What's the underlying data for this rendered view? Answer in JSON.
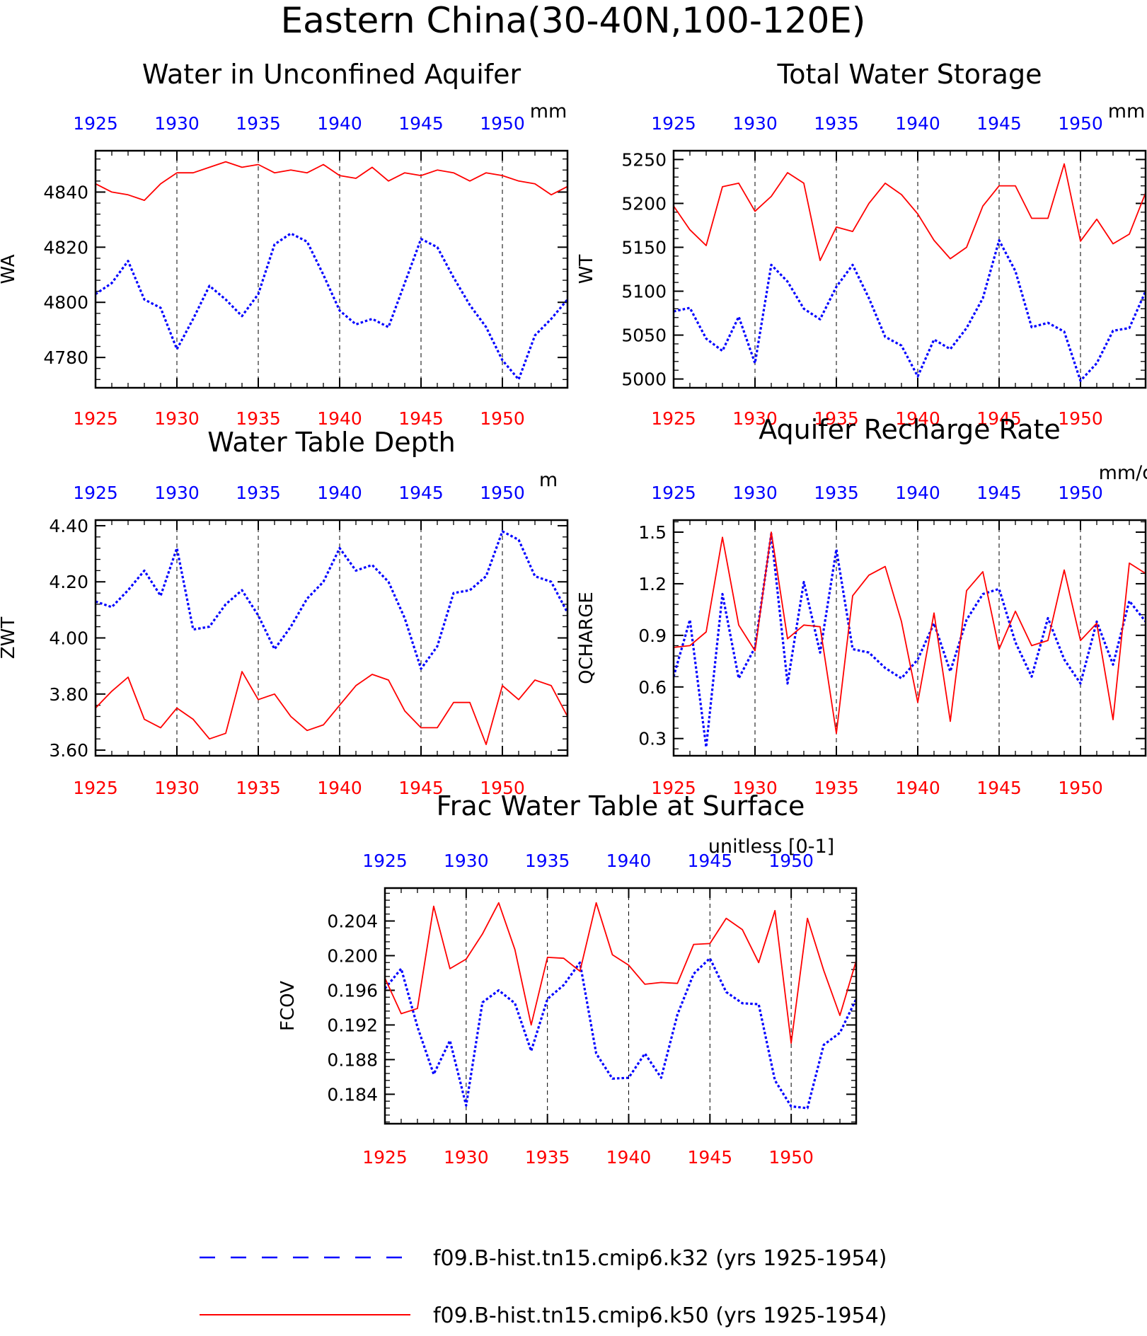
{
  "title": "Eastern China(30-40N,100-120E)",
  "legend": {
    "placement": "bottom",
    "entries": [
      {
        "label": "f09.B-hist.tn15.cmip6.k32 (yrs 1925-1954)",
        "color": "#0000ff",
        "style": "dashed"
      },
      {
        "label": "f09.B-hist.tn15.cmip6.k50 (yrs 1925-1954)",
        "color": "#ff0000",
        "style": "solid"
      }
    ]
  },
  "colors": {
    "k32": "#0000ff",
    "k50": "#ff0000",
    "axis": "#000000"
  },
  "chart_data": [
    {
      "type": "line",
      "title": "Water in Unconfined Aquifer",
      "units": "mm",
      "ylabel": "WA",
      "xlim": [
        1925,
        1954
      ],
      "ylim": [
        4769,
        4855
      ],
      "yticks": [
        4780,
        4800,
        4820,
        4840
      ],
      "ytick_labels": [
        "4780",
        "4800",
        "4820",
        "4840"
      ],
      "xticks": [
        1925,
        1930,
        1935,
        1940,
        1945,
        1950
      ],
      "grid": "dashed vertical lines at 1930, 1935, 1940, 1945, 1950",
      "x": [
        1925,
        1926,
        1927,
        1928,
        1929,
        1930,
        1931,
        1932,
        1933,
        1934,
        1935,
        1936,
        1937,
        1938,
        1939,
        1940,
        1941,
        1942,
        1943,
        1944,
        1945,
        1946,
        1947,
        1948,
        1949,
        1950,
        1951,
        1952,
        1953,
        1954
      ],
      "series": [
        {
          "name": "f09.B-hist.tn15.cmip6.k32 (yrs 1925-1954)",
          "color": "#0000ff",
          "style": "dashed",
          "values": [
            4803,
            4807,
            4815,
            4801,
            4798,
            4783,
            4794,
            4806,
            4801,
            4795,
            4803,
            4821,
            4825,
            4822,
            4810,
            4797,
            4792,
            4794,
            4791,
            4807,
            4823,
            4820,
            4809,
            4799,
            4791,
            4779,
            4772,
            4788,
            4794,
            4801
          ]
        },
        {
          "name": "f09.B-hist.tn15.cmip6.k50 (yrs 1925-1954)",
          "color": "#ff0000",
          "style": "solid",
          "values": [
            4843,
            4840,
            4839,
            4837,
            4843,
            4847,
            4847,
            4849,
            4851,
            4849,
            4850,
            4847,
            4848,
            4847,
            4850,
            4846,
            4845,
            4849,
            4844,
            4847,
            4846,
            4848,
            4847,
            4844,
            4847,
            4846,
            4844,
            4843,
            4839,
            4842
          ]
        }
      ]
    },
    {
      "type": "line",
      "title": "Total Water Storage",
      "units": "mm",
      "ylabel": "WT",
      "xlim": [
        1925,
        1954
      ],
      "ylim": [
        4990,
        5260
      ],
      "yticks": [
        5000,
        5050,
        5100,
        5150,
        5200,
        5250
      ],
      "ytick_labels": [
        "5000",
        "5050",
        "5100",
        "5150",
        "5200",
        "5250"
      ],
      "xticks": [
        1925,
        1930,
        1935,
        1940,
        1945,
        1950
      ],
      "grid": "dashed vertical lines at 1930, 1935, 1940, 1945, 1950",
      "x": [
        1925,
        1926,
        1927,
        1928,
        1929,
        1930,
        1931,
        1932,
        1933,
        1934,
        1935,
        1936,
        1937,
        1938,
        1939,
        1940,
        1941,
        1942,
        1943,
        1944,
        1945,
        1946,
        1947,
        1948,
        1949,
        1950,
        1951,
        1952,
        1953,
        1954
      ],
      "series": [
        {
          "name": "f09.B-hist.tn15.cmip6.k32 (yrs 1925-1954)",
          "color": "#0000ff",
          "style": "dashed",
          "values": [
            5077,
            5081,
            5046,
            5032,
            5071,
            5018,
            5130,
            5111,
            5080,
            5068,
            5105,
            5130,
            5092,
            5048,
            5038,
            5003,
            5045,
            5034,
            5058,
            5092,
            5158,
            5123,
            5059,
            5064,
            5054,
            4998,
            5018,
            5055,
            5058,
            5100
          ]
        },
        {
          "name": "f09.B-hist.tn15.cmip6.k50 (yrs 1925-1954)",
          "color": "#ff0000",
          "style": "solid",
          "values": [
            5197,
            5170,
            5152,
            5219,
            5223,
            5191,
            5208,
            5235,
            5223,
            5135,
            5173,
            5168,
            5200,
            5223,
            5210,
            5188,
            5158,
            5137,
            5150,
            5197,
            5220,
            5220,
            5183,
            5183,
            5245,
            5157,
            5182,
            5154,
            5165,
            5212
          ]
        }
      ]
    },
    {
      "type": "line",
      "title": "Water Table Depth",
      "units": "m",
      "ylabel": "ZWT",
      "xlim": [
        1925,
        1954
      ],
      "ylim": [
        3.58,
        4.42
      ],
      "yticks": [
        3.6,
        3.8,
        4.0,
        4.2,
        4.4
      ],
      "ytick_labels": [
        "3.60",
        "3.80",
        "4.00",
        "4.20",
        "4.40"
      ],
      "xticks": [
        1925,
        1930,
        1935,
        1940,
        1945,
        1950
      ],
      "grid": "dashed vertical lines at 1930, 1935, 1940, 1945, 1950",
      "x": [
        1925,
        1926,
        1927,
        1928,
        1929,
        1930,
        1931,
        1932,
        1933,
        1934,
        1935,
        1936,
        1937,
        1938,
        1939,
        1940,
        1941,
        1942,
        1943,
        1944,
        1945,
        1946,
        1947,
        1948,
        1949,
        1950,
        1951,
        1952,
        1953,
        1954
      ],
      "series": [
        {
          "name": "f09.B-hist.tn15.cmip6.k32 (yrs 1925-1954)",
          "color": "#0000ff",
          "style": "dashed",
          "values": [
            4.13,
            4.11,
            4.17,
            4.24,
            4.15,
            4.32,
            4.03,
            4.04,
            4.12,
            4.17,
            4.08,
            3.96,
            4.04,
            4.14,
            4.2,
            4.32,
            4.24,
            4.26,
            4.2,
            4.07,
            3.89,
            3.97,
            4.16,
            4.17,
            4.22,
            4.38,
            4.35,
            4.22,
            4.2,
            4.09
          ]
        },
        {
          "name": "f09.B-hist.tn15.cmip6.k50 (yrs 1925-1954)",
          "color": "#ff0000",
          "style": "solid",
          "values": [
            3.75,
            3.81,
            3.86,
            3.71,
            3.68,
            3.75,
            3.71,
            3.64,
            3.66,
            3.88,
            3.78,
            3.8,
            3.72,
            3.67,
            3.69,
            3.76,
            3.83,
            3.87,
            3.85,
            3.74,
            3.68,
            3.68,
            3.77,
            3.77,
            3.62,
            3.83,
            3.78,
            3.85,
            3.83,
            3.72
          ]
        }
      ]
    },
    {
      "type": "line",
      "title": "Aquifer Recharge Rate",
      "units": "mm/d",
      "ylabel": "QCHARGE",
      "xlim": [
        1925,
        1954
      ],
      "ylim": [
        0.2,
        1.57
      ],
      "yticks": [
        0.3,
        0.6,
        0.9,
        1.2,
        1.5
      ],
      "ytick_labels": [
        "0.3",
        "0.6",
        "0.9",
        "1.2",
        "1.5"
      ],
      "xticks": [
        1925,
        1930,
        1935,
        1940,
        1945,
        1950
      ],
      "grid": "dashed vertical lines at 1930, 1935, 1940, 1945, 1950",
      "x": [
        1925,
        1926,
        1927,
        1928,
        1929,
        1930,
        1931,
        1932,
        1933,
        1934,
        1935,
        1936,
        1937,
        1938,
        1939,
        1940,
        1941,
        1942,
        1943,
        1944,
        1945,
        1946,
        1947,
        1948,
        1949,
        1950,
        1951,
        1952,
        1953,
        1954
      ],
      "series": [
        {
          "name": "f09.B-hist.tn15.cmip6.k32 (yrs 1925-1954)",
          "color": "#0000ff",
          "style": "dashed",
          "values": [
            0.66,
            0.99,
            0.25,
            1.14,
            0.65,
            0.83,
            1.49,
            0.62,
            1.21,
            0.8,
            1.4,
            0.82,
            0.8,
            0.71,
            0.65,
            0.76,
            0.97,
            0.69,
            0.99,
            1.14,
            1.17,
            0.86,
            0.66,
            1.0,
            0.76,
            0.62,
            0.98,
            0.73,
            1.1,
            0.98
          ]
        },
        {
          "name": "f09.B-hist.tn15.cmip6.k50 (yrs 1925-1954)",
          "color": "#ff0000",
          "style": "solid",
          "values": [
            0.83,
            0.84,
            0.92,
            1.47,
            0.96,
            0.81,
            1.5,
            0.88,
            0.96,
            0.95,
            0.33,
            1.13,
            1.25,
            1.3,
            0.98,
            0.51,
            1.03,
            0.4,
            1.16,
            1.27,
            0.82,
            1.04,
            0.84,
            0.87,
            1.28,
            0.87,
            0.97,
            0.41,
            1.32,
            1.26
          ]
        }
      ]
    },
    {
      "type": "line",
      "title": "Frac Water Table at Surface",
      "units": "unitless [0-1]",
      "ylabel": "FCOV",
      "xlim": [
        1925,
        1954
      ],
      "ylim": [
        0.1806,
        0.2078
      ],
      "yticks": [
        0.184,
        0.188,
        0.192,
        0.196,
        0.2,
        0.204
      ],
      "ytick_labels": [
        "0.184",
        "0.188",
        "0.192",
        "0.196",
        "0.200",
        "0.204"
      ],
      "xticks": [
        1925,
        1930,
        1935,
        1940,
        1945,
        1950
      ],
      "grid": "dashed vertical lines at 1930, 1935, 1940, 1945, 1950",
      "x": [
        1925,
        1926,
        1927,
        1928,
        1929,
        1930,
        1931,
        1932,
        1933,
        1934,
        1935,
        1936,
        1937,
        1938,
        1939,
        1940,
        1941,
        1942,
        1943,
        1944,
        1945,
        1946,
        1947,
        1948,
        1949,
        1950,
        1951,
        1952,
        1953,
        1954
      ],
      "series": [
        {
          "name": "f09.B-hist.tn15.cmip6.k32 (yrs 1925-1954)",
          "color": "#0000ff",
          "style": "dashed",
          "values": [
            0.1962,
            0.1985,
            0.1918,
            0.1863,
            0.1902,
            0.1827,
            0.1946,
            0.196,
            0.1945,
            0.189,
            0.195,
            0.1966,
            0.1992,
            0.1887,
            0.1858,
            0.1859,
            0.1887,
            0.1859,
            0.1932,
            0.1979,
            0.1997,
            0.1958,
            0.1945,
            0.1944,
            0.1856,
            0.1826,
            0.1824,
            0.1897,
            0.1911,
            0.195
          ]
        },
        {
          "name": "f09.B-hist.tn15.cmip6.k50 (yrs 1925-1954)",
          "color": "#ff0000",
          "style": "solid",
          "values": [
            0.1974,
            0.1933,
            0.1939,
            0.2057,
            0.1985,
            0.1996,
            0.2025,
            0.2061,
            0.2007,
            0.192,
            0.1998,
            0.1997,
            0.1982,
            0.2061,
            0.2001,
            0.1989,
            0.1967,
            0.1969,
            0.1968,
            0.2013,
            0.2014,
            0.2043,
            0.203,
            0.1992,
            0.2052,
            0.1899,
            0.2043,
            0.1983,
            0.1931,
            0.1994
          ]
        }
      ]
    }
  ]
}
